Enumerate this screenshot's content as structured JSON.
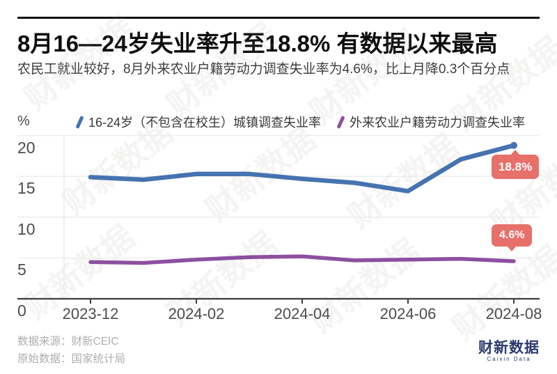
{
  "header": {
    "title": "8月16—24岁失业率升至18.8% 有数据以来最高",
    "subtitle": "农民工就业较好，8月外来农业户籍劳动力调查失业率为4.6%，比上月降0.3个百分点"
  },
  "axes": {
    "unit_label": "%"
  },
  "legend": {
    "items": [
      {
        "label": "16-24岁（不包含在校生）城镇调查失业率",
        "color": "#4673b0"
      },
      {
        "label": "外来农业户籍劳动力调查失业率",
        "color": "#8d4fa0"
      }
    ]
  },
  "watermark": {
    "text": "财新数据"
  },
  "footer": {
    "source_line1": "数据来源：财新CEIC",
    "source_line2": "原始数据：国家统计局",
    "logo_text": "财新数据",
    "logo_subtext": "Caixin Data"
  },
  "chart_data": {
    "type": "line",
    "title": "8月16—24岁失业率升至18.8% 有数据以来最高",
    "categories": [
      "2023-12",
      "2024-01",
      "2024-02",
      "2024-03",
      "2024-04",
      "2024-05",
      "2024-06",
      "2024-07",
      "2024-08"
    ],
    "x_tick_labels": [
      "2023-12",
      "2024-02",
      "2024-04",
      "2024-06",
      "2024-08"
    ],
    "ylabel": "%",
    "y_ticks": [
      0,
      5,
      10,
      15,
      20
    ],
    "ylim": [
      0,
      21.5
    ],
    "grid": true,
    "legend_position": "top",
    "series": [
      {
        "name": "16-24岁（不包含在校生）城镇调查失业率",
        "color": "#4673b0",
        "values": [
          14.9,
          14.6,
          15.3,
          15.3,
          14.7,
          14.2,
          13.2,
          17.1,
          18.8
        ],
        "end_label": "18.8%"
      },
      {
        "name": "外来农业户籍劳动力调查失业率",
        "color": "#8d4fa0",
        "values": [
          4.5,
          4.4,
          4.8,
          5.1,
          5.2,
          4.7,
          4.8,
          4.9,
          4.6
        ],
        "end_label": "4.6%"
      }
    ],
    "annotation_badge_color": "#e8706a"
  }
}
